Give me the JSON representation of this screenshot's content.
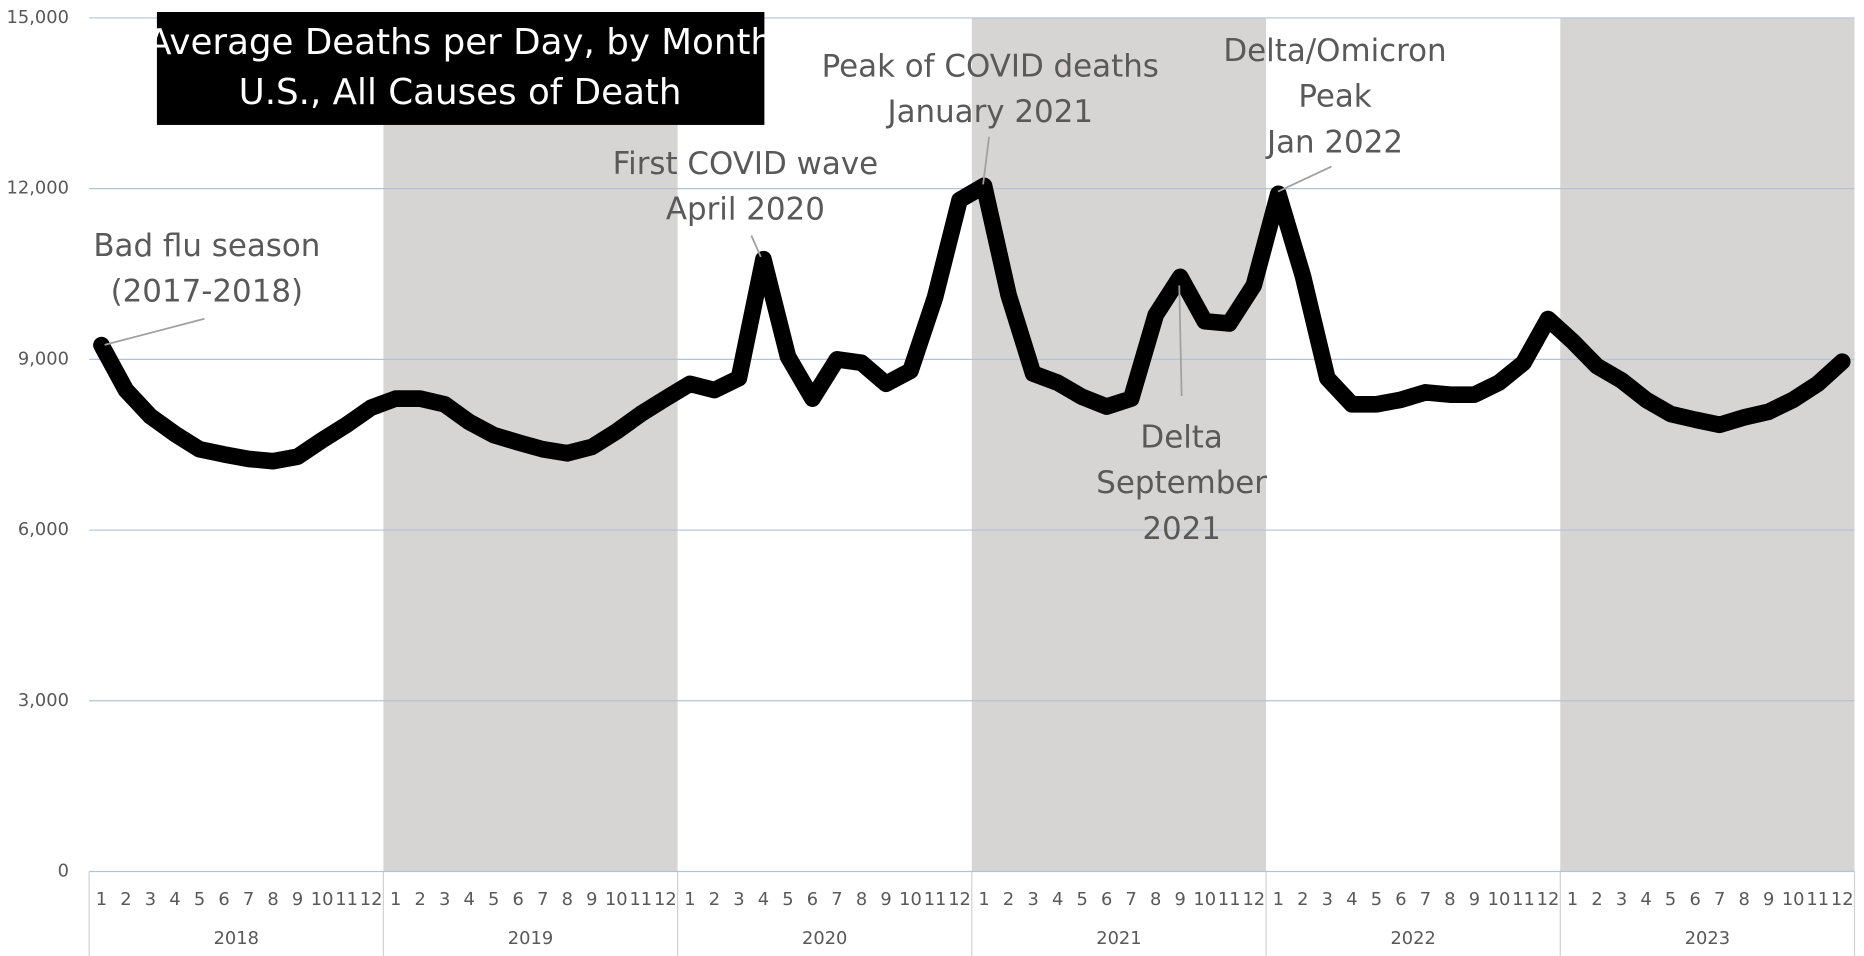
{
  "chart_data": {
    "type": "line",
    "title": "Average Deaths per Day, by Month",
    "subtitle": "U.S., All Causes of Death",
    "categories": [
      "1",
      "2",
      "3",
      "4",
      "5",
      "6",
      "7",
      "8",
      "9",
      "10",
      "11",
      "12",
      "1",
      "2",
      "3",
      "4",
      "5",
      "6",
      "7",
      "8",
      "9",
      "10",
      "11",
      "12",
      "1",
      "2",
      "3",
      "4",
      "5",
      "6",
      "7",
      "8",
      "9",
      "10",
      "11",
      "12",
      "1",
      "2",
      "3",
      "4",
      "5",
      "6",
      "7",
      "8",
      "9",
      "10",
      "11",
      "12",
      "1",
      "2",
      "3",
      "4",
      "5",
      "6",
      "7",
      "8",
      "9",
      "10",
      "11",
      "12",
      "1",
      "2",
      "3",
      "4",
      "5",
      "6",
      "7",
      "8",
      "9",
      "10",
      "11",
      "12"
    ],
    "groups": [
      "2018",
      "2019",
      "2020",
      "2021",
      "2022",
      "2023"
    ],
    "series": [
      {
        "color": "#000000",
        "values": [
          9250,
          8460,
          8000,
          7690,
          7420,
          7330,
          7250,
          7210,
          7290,
          7580,
          7850,
          8150,
          8310,
          8310,
          8210,
          7900,
          7670,
          7540,
          7420,
          7350,
          7460,
          7730,
          8040,
          8310,
          8570,
          8460,
          8670,
          10760,
          9050,
          8310,
          9000,
          8940,
          8570,
          8800,
          10090,
          11800,
          12050,
          10130,
          8750,
          8590,
          8340,
          8170,
          8310,
          9780,
          10450,
          9670,
          9630,
          10300,
          11910,
          10470,
          8670,
          8210,
          8210,
          8290,
          8420,
          8380,
          8380,
          8590,
          8940,
          9710,
          9320,
          8880,
          8630,
          8290,
          8040,
          7940,
          7850,
          7980,
          8080,
          8290,
          8570,
          8960
        ]
      }
    ],
    "ylim": [
      0,
      15000
    ],
    "yticks": [
      0,
      {
        "value": 3000,
        "label": "3,000"
      },
      {
        "value": 6000,
        "label": "6,000"
      },
      {
        "value": 9000,
        "label": "9,000"
      },
      {
        "value": 12000,
        "label": "12,000"
      },
      {
        "value": 15000,
        "label": "15,000"
      }
    ],
    "grid": true,
    "shade_color": "#d6d5d4",
    "annotations": [
      {
        "lines": [
          "Bad flu season",
          "(2017-2018)"
        ]
      },
      {
        "lines": [
          "First COVID wave",
          "April 2020"
        ]
      },
      {
        "lines": [
          "Peak of COVID deaths",
          "January 2021"
        ]
      },
      {
        "lines": [
          "Delta/Omicron",
          "Peak",
          "Jan 2022"
        ]
      },
      {
        "lines": [
          "Delta",
          "September",
          "2021"
        ]
      }
    ]
  }
}
